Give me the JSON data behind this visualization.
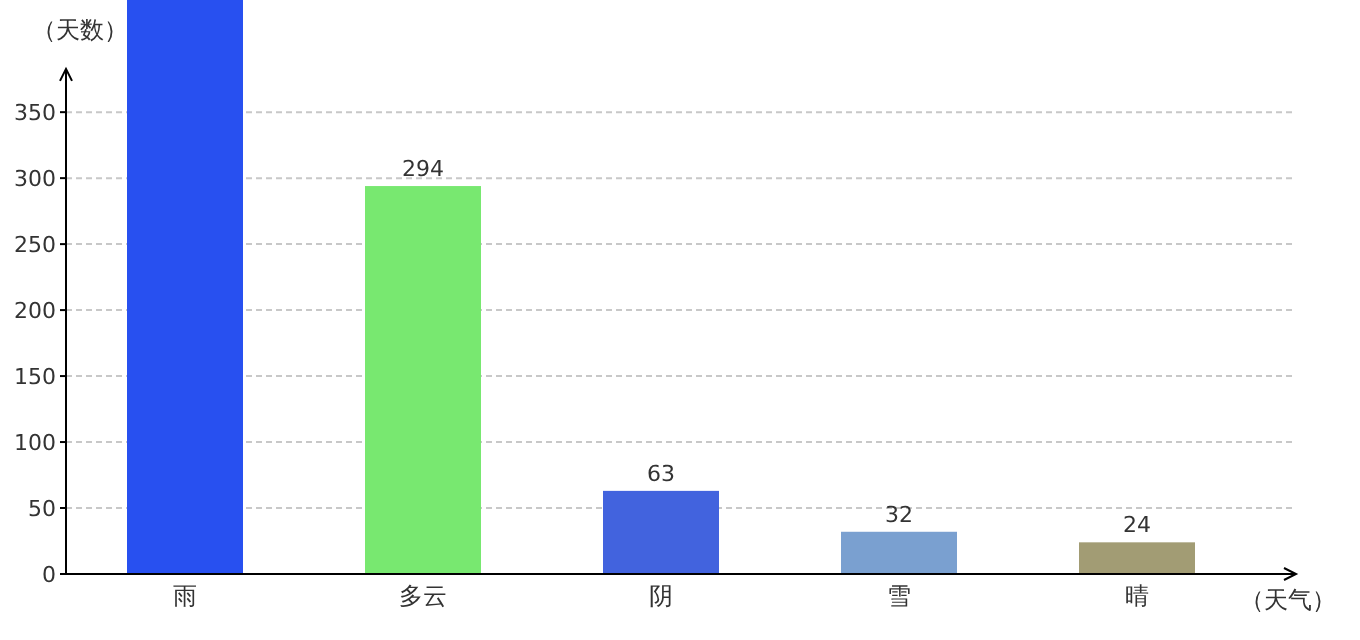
{
  "chart_data": {
    "type": "bar",
    "xlabel": "（天气）",
    "ylabel": "（天数）",
    "categories": [
      "雨",
      "多云",
      "阴",
      "雪",
      "晴"
    ],
    "values": [
      435,
      294,
      63,
      32,
      24
    ],
    "colors": [
      "#2850f0",
      "#78e870",
      "#4263de",
      "#7aa0d0",
      "#a29c74"
    ],
    "value_labels": [
      null,
      "294",
      "63",
      "32",
      "24"
    ],
    "ylim": [
      0,
      435
    ],
    "yticks": [
      0,
      50,
      100,
      150,
      200,
      250,
      300,
      350
    ],
    "grid": "y"
  }
}
